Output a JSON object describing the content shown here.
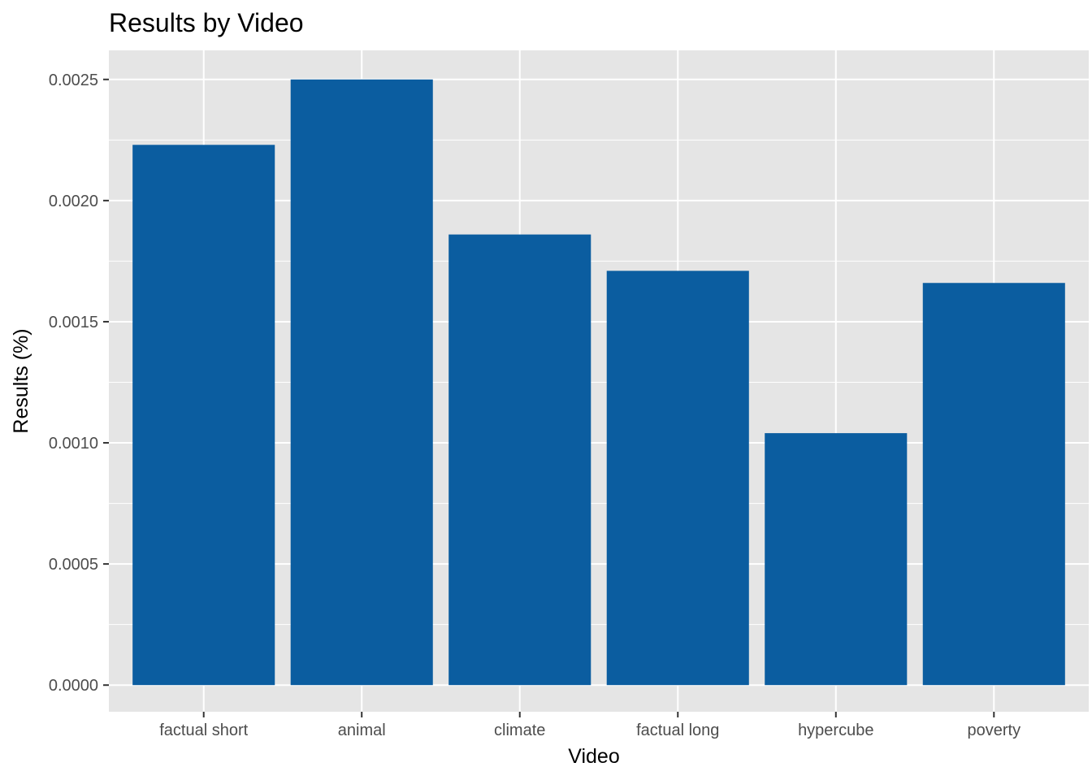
{
  "chart_data": {
    "type": "bar",
    "title": "Results by Video",
    "xlabel": "Video",
    "ylabel": "Results (%)",
    "categories": [
      "factual short",
      "animal",
      "climate",
      "factual long",
      "hypercube",
      "poverty"
    ],
    "values": [
      0.00223,
      0.0025,
      0.00186,
      0.00171,
      0.00104,
      0.00166
    ],
    "yticks": [
      "0.0000",
      "0.0005",
      "0.0010",
      "0.0015",
      "0.0020",
      "0.0025"
    ],
    "ylim": [
      -0.00011,
      0.00262
    ],
    "grid": true,
    "legend": "none",
    "colors": {
      "bar": "#0b5da0",
      "panel": "#e5e5e5",
      "grid": "#ffffff"
    }
  }
}
